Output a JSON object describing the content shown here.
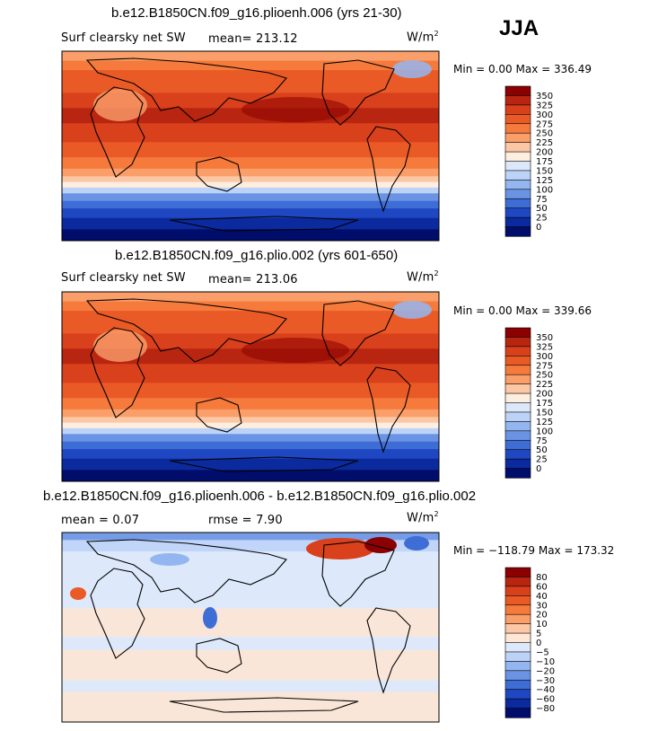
{
  "season": "JJA",
  "panels": [
    {
      "title": "b.e12.B1850CN.f09_g16.plioenh.006 (yrs 21-30)",
      "left_label": "Surf clearsky net SW",
      "stat_label": "mean= 213.12",
      "units_base": "W/m",
      "units_sup": "2",
      "min_max": "Min =    0.00 Max = 336.49"
    },
    {
      "title": "b.e12.B1850CN.f09_g16.plio.002 (yrs 601-650)",
      "left_label": "Surf clearsky net SW",
      "stat_label": "mean= 213.06",
      "units_base": "W/m",
      "units_sup": "2",
      "min_max": "Min =    0.00 Max = 339.66"
    },
    {
      "title": "b.e12.B1850CN.f09_g16.plioenh.006 - b.e12.B1850CN.f09_g16.plio.002",
      "left_label": "mean =    0.07",
      "stat_label": "rmse =    7.90",
      "units_base": "W/m",
      "units_sup": "2",
      "min_max": "Min = −118.79 Max = 173.32"
    }
  ],
  "chart_data": [
    {
      "type": "heatmap",
      "title": "b.e12.B1850CN.f09_g16.plioenh.006 (yrs 21-30)",
      "variable": "Surf clearsky net SW",
      "units": "W/m2",
      "mean": 213.12,
      "min": 0.0,
      "max": 336.49,
      "colorbar_levels": [
        "350",
        "325",
        "300",
        "275",
        "250",
        "225",
        "200",
        "175",
        "150",
        "125",
        "100",
        "75",
        "50",
        "25",
        "0"
      ],
      "colorbar_colors": [
        "#8b0000",
        "#b82510",
        "#d9401c",
        "#ea5a26",
        "#f57a3c",
        "#fa9e6a",
        "#fcc7a5",
        "#fdeee0",
        "#dce8fa",
        "#bcd3f7",
        "#94b6f0",
        "#6a93e4",
        "#3f6dd6",
        "#1f47c2",
        "#0a2a9e",
        "#000d6a"
      ]
    },
    {
      "type": "heatmap",
      "title": "b.e12.B1850CN.f09_g16.plio.002 (yrs 601-650)",
      "variable": "Surf clearsky net SW",
      "units": "W/m2",
      "mean": 213.06,
      "min": 0.0,
      "max": 339.66,
      "colorbar_levels": [
        "350",
        "325",
        "300",
        "275",
        "250",
        "225",
        "200",
        "175",
        "150",
        "125",
        "100",
        "75",
        "50",
        "25",
        "0"
      ],
      "colorbar_colors": [
        "#8b0000",
        "#b82510",
        "#d9401c",
        "#ea5a26",
        "#f57a3c",
        "#fa9e6a",
        "#fcc7a5",
        "#fdeee0",
        "#dce8fa",
        "#bcd3f7",
        "#94b6f0",
        "#6a93e4",
        "#3f6dd6",
        "#1f47c2",
        "#0a2a9e",
        "#000d6a"
      ]
    },
    {
      "type": "heatmap",
      "title": "b.e12.B1850CN.f09_g16.plioenh.006 - b.e12.B1850CN.f09_g16.plio.002",
      "units": "W/m2",
      "mean": 0.07,
      "rmse": 7.9,
      "min": -118.79,
      "max": 173.32,
      "colorbar_levels": [
        "80",
        "60",
        "40",
        "30",
        "20",
        "10",
        "5",
        "0",
        "−5",
        "−10",
        "−20",
        "−30",
        "−40",
        "−60",
        "−80"
      ],
      "colorbar_colors": [
        "#8b0000",
        "#b82510",
        "#d9401c",
        "#ea5a26",
        "#f57a3c",
        "#fa9e6a",
        "#fcc7a5",
        "#fde6d4",
        "#dde9fb",
        "#bcd3f7",
        "#94b6f0",
        "#6a93e4",
        "#3f6dd6",
        "#1f47c2",
        "#0a2a9e",
        "#000d6a"
      ]
    }
  ]
}
